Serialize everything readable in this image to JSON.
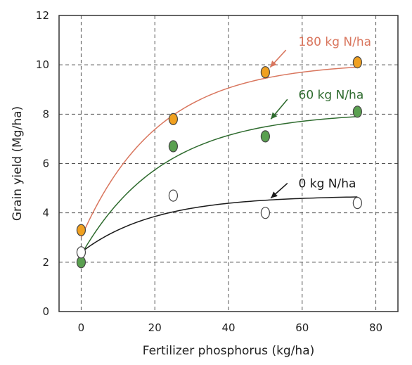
{
  "chart_data": {
    "type": "scatter",
    "xlabel": "Fertilizer phosphorus (kg/ha)",
    "ylabel": "Grain yield (Mg/ha)",
    "xlim": [
      -6,
      86
    ],
    "ylim": [
      0,
      12
    ],
    "xticks": [
      0,
      20,
      40,
      60,
      80
    ],
    "yticks": [
      0,
      2,
      4,
      6,
      8,
      10,
      12
    ],
    "xtick_labels": [
      "0",
      "20",
      "40",
      "60",
      "80"
    ],
    "ytick_labels": [
      "0",
      "2",
      "4",
      "6",
      "8",
      "10",
      "12"
    ],
    "grid": true,
    "series": [
      {
        "name": "180 kg N/ha",
        "color": "#d9765e",
        "marker_color": "#f0a020",
        "points": [
          {
            "x": 0,
            "y": 3.3
          },
          {
            "x": 25,
            "y": 7.8
          },
          {
            "x": 50,
            "y": 9.7
          },
          {
            "x": 75,
            "y": 10.1
          }
        ],
        "fit": {
          "plateau": 10.1,
          "start": 3.0,
          "rate": 0.048
        }
      },
      {
        "name": "60 kg N/ha",
        "color": "#2e6b2e",
        "marker_color": "#5aa050",
        "points": [
          {
            "x": 0,
            "y": 2.0
          },
          {
            "x": 25,
            "y": 6.7
          },
          {
            "x": 50,
            "y": 7.1
          },
          {
            "x": 75,
            "y": 8.1
          }
        ],
        "fit": {
          "plateau": 8.1,
          "start": 2.3,
          "rate": 0.045
        }
      },
      {
        "name": "0 kg N/ha",
        "color": "#1a1a1a",
        "marker_color": "#ffffff",
        "points": [
          {
            "x": 0,
            "y": 2.4
          },
          {
            "x": 25,
            "y": 4.7
          },
          {
            "x": 50,
            "y": 4.0
          },
          {
            "x": 75,
            "y": 4.4
          }
        ],
        "fit": {
          "plateau": 4.7,
          "start": 2.4,
          "rate": 0.05
        }
      }
    ],
    "annotations": [
      {
        "text": "180 kg N/ha",
        "color": "#d9765e",
        "label_x": 59,
        "label_y": 10.95,
        "arrow_from": [
          55.6,
          10.6
        ],
        "arrow_to": [
          51.3,
          9.9
        ]
      },
      {
        "text": "60 kg N/ha",
        "color": "#2e6b2e",
        "label_x": 59,
        "label_y": 8.8,
        "arrow_from": [
          56,
          8.6
        ],
        "arrow_to": [
          51.5,
          7.8
        ]
      },
      {
        "text": "0 kg N/ha",
        "color": "#1a1a1a",
        "label_x": 59,
        "label_y": 5.2,
        "arrow_from": [
          56,
          5.2
        ],
        "arrow_to": [
          51.5,
          4.6
        ]
      }
    ]
  }
}
